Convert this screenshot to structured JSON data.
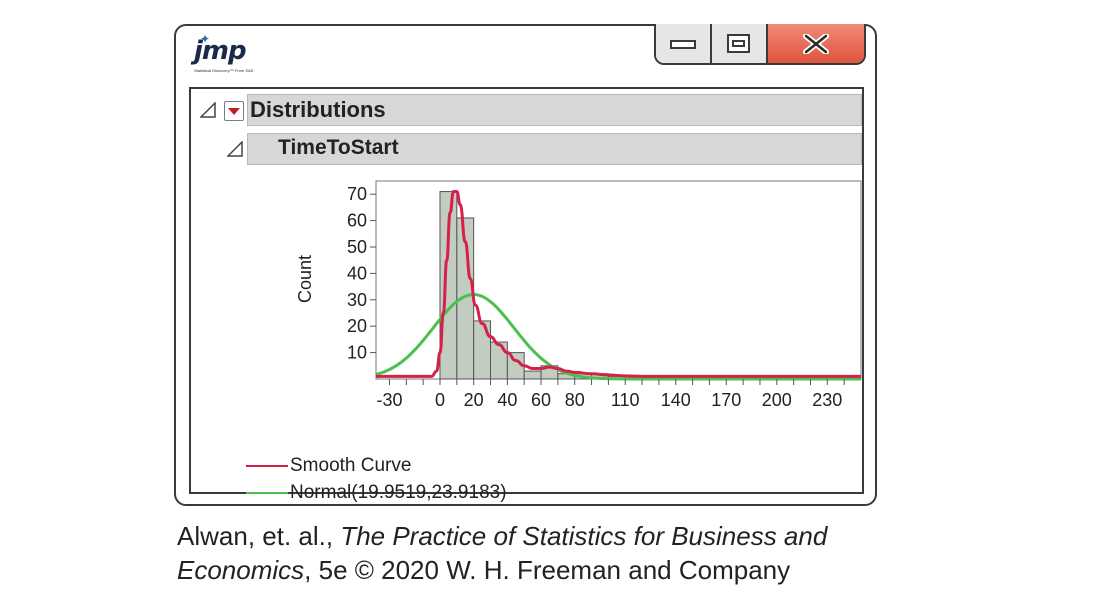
{
  "app": {
    "logo_text": "jmp",
    "logo_tagline": "Statistical Discovery™ From SAS."
  },
  "window_controls": {
    "minimize_icon": "minimize-icon",
    "restore_icon": "restore-icon",
    "close_icon": "close-icon",
    "close_color": "#e5614b"
  },
  "report": {
    "outline_title": "Distributions",
    "variable_title": "TimeToStart"
  },
  "chart_data": {
    "type": "bar",
    "ylabel": "Count",
    "xlabel": "",
    "xlim": [
      -38,
      250
    ],
    "ylim": [
      0,
      75
    ],
    "x_ticks": [
      "-30",
      "0",
      "20",
      "40",
      "60",
      "80",
      "110",
      "140",
      "170",
      "200",
      "230"
    ],
    "x_tick_values": [
      -30,
      0,
      20,
      40,
      60,
      80,
      110,
      140,
      170,
      200,
      230
    ],
    "y_ticks": [
      "10",
      "20",
      "30",
      "40",
      "50",
      "60",
      "70"
    ],
    "y_tick_values": [
      10,
      20,
      30,
      40,
      50,
      60,
      70
    ],
    "bin_width": 10,
    "bins": [
      {
        "x0": 0,
        "count": 71
      },
      {
        "x0": 10,
        "count": 61
      },
      {
        "x0": 20,
        "count": 22
      },
      {
        "x0": 30,
        "count": 14
      },
      {
        "x0": 40,
        "count": 10
      },
      {
        "x0": 50,
        "count": 3
      },
      {
        "x0": 60,
        "count": 5
      },
      {
        "x0": 70,
        "count": 2
      },
      {
        "x0": 80,
        "count": 2
      },
      {
        "x0": 90,
        "count": 2
      },
      {
        "x0": 100,
        "count": 1
      },
      {
        "x0": 110,
        "count": 1
      },
      {
        "x0": 120,
        "count": 0
      },
      {
        "x0": 130,
        "count": 0
      },
      {
        "x0": 140,
        "count": 0
      },
      {
        "x0": 150,
        "count": 0
      },
      {
        "x0": 160,
        "count": 0
      },
      {
        "x0": 170,
        "count": 0
      },
      {
        "x0": 180,
        "count": 0
      },
      {
        "x0": 190,
        "count": 0
      },
      {
        "x0": 200,
        "count": 0
      },
      {
        "x0": 210,
        "count": 0
      },
      {
        "x0": 220,
        "count": 0
      },
      {
        "x0": 230,
        "count": 1
      }
    ],
    "bar_color": "#c3ccc0",
    "curves": [
      {
        "name": "Smooth Curve",
        "color": "#d6204a",
        "points": [
          [
            -38,
            1
          ],
          [
            -5,
            1
          ],
          [
            -2,
            3
          ],
          [
            0,
            10
          ],
          [
            2,
            25
          ],
          [
            4,
            45
          ],
          [
            6,
            63
          ],
          [
            8,
            71
          ],
          [
            10,
            71
          ],
          [
            12,
            66
          ],
          [
            15,
            52
          ],
          [
            18,
            38
          ],
          [
            21,
            28
          ],
          [
            25,
            21
          ],
          [
            30,
            16
          ],
          [
            35,
            13
          ],
          [
            40,
            10
          ],
          [
            45,
            7
          ],
          [
            50,
            5
          ],
          [
            55,
            4
          ],
          [
            60,
            4
          ],
          [
            65,
            4.5
          ],
          [
            70,
            4
          ],
          [
            75,
            3
          ],
          [
            80,
            2.5
          ],
          [
            90,
            2
          ],
          [
            100,
            1.5
          ],
          [
            110,
            1.2
          ],
          [
            120,
            1
          ],
          [
            150,
            1
          ],
          [
            200,
            1
          ],
          [
            250,
            1
          ]
        ]
      },
      {
        "name": "Normal(19.9519,23.9183)",
        "color": "#4cc04f",
        "mean": 19.9519,
        "sd": 23.9183,
        "peak": 32
      }
    ]
  },
  "legend": [
    {
      "label": "Smooth Curve",
      "color": "#d6204a"
    },
    {
      "label": "Normal(19.9519,23.9183)",
      "color": "#4cc04f"
    }
  ],
  "caption": {
    "author": "Alwan, et. al., ",
    "title_part1": "The Practice of Statistics for Business and",
    "title_part2": "Economics",
    "edition_publisher": ", 5e © 2020 W. H. Freeman and Company"
  }
}
